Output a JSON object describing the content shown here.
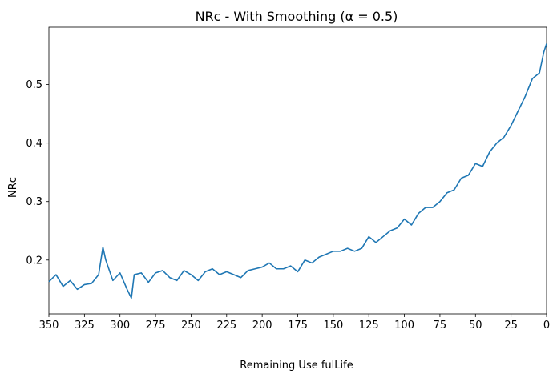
{
  "chart_data": {
    "type": "line",
    "title": "NRc - With Smoothing (α = 0.5)",
    "xlabel": "Remaining Use fulLife",
    "ylabel": "NRc",
    "xlim": [
      350,
      0
    ],
    "ylim": [
      0.108,
      0.598
    ],
    "x_ticks": [
      350,
      325,
      300,
      275,
      250,
      225,
      200,
      175,
      150,
      125,
      100,
      75,
      50,
      25,
      0
    ],
    "y_ticks": [
      0.2,
      0.3,
      0.4,
      0.5
    ],
    "grid": false,
    "legend": "none",
    "series": [
      {
        "color": "#1f77b4",
        "x": [
          350,
          345,
          340,
          335,
          330,
          325,
          320,
          315,
          312,
          310,
          305,
          300,
          295,
          292,
          290,
          285,
          280,
          275,
          270,
          265,
          260,
          255,
          250,
          245,
          240,
          235,
          230,
          225,
          220,
          215,
          210,
          205,
          200,
          195,
          190,
          185,
          180,
          175,
          170,
          165,
          160,
          155,
          150,
          145,
          140,
          135,
          130,
          125,
          120,
          115,
          110,
          105,
          100,
          95,
          90,
          85,
          80,
          75,
          70,
          65,
          60,
          55,
          50,
          45,
          40,
          35,
          30,
          25,
          20,
          15,
          10,
          5,
          2,
          0
        ],
        "y": [
          0.163,
          0.175,
          0.155,
          0.165,
          0.15,
          0.158,
          0.16,
          0.175,
          0.222,
          0.2,
          0.165,
          0.178,
          0.15,
          0.135,
          0.175,
          0.178,
          0.162,
          0.178,
          0.182,
          0.17,
          0.165,
          0.182,
          0.175,
          0.165,
          0.18,
          0.185,
          0.175,
          0.18,
          0.175,
          0.17,
          0.182,
          0.185,
          0.188,
          0.195,
          0.185,
          0.185,
          0.19,
          0.18,
          0.2,
          0.195,
          0.205,
          0.21,
          0.215,
          0.215,
          0.22,
          0.215,
          0.22,
          0.24,
          0.23,
          0.24,
          0.25,
          0.255,
          0.27,
          0.26,
          0.28,
          0.29,
          0.29,
          0.3,
          0.315,
          0.32,
          0.34,
          0.345,
          0.365,
          0.36,
          0.385,
          0.4,
          0.41,
          0.43,
          0.455,
          0.48,
          0.51,
          0.52,
          0.555,
          0.57
        ]
      }
    ]
  }
}
